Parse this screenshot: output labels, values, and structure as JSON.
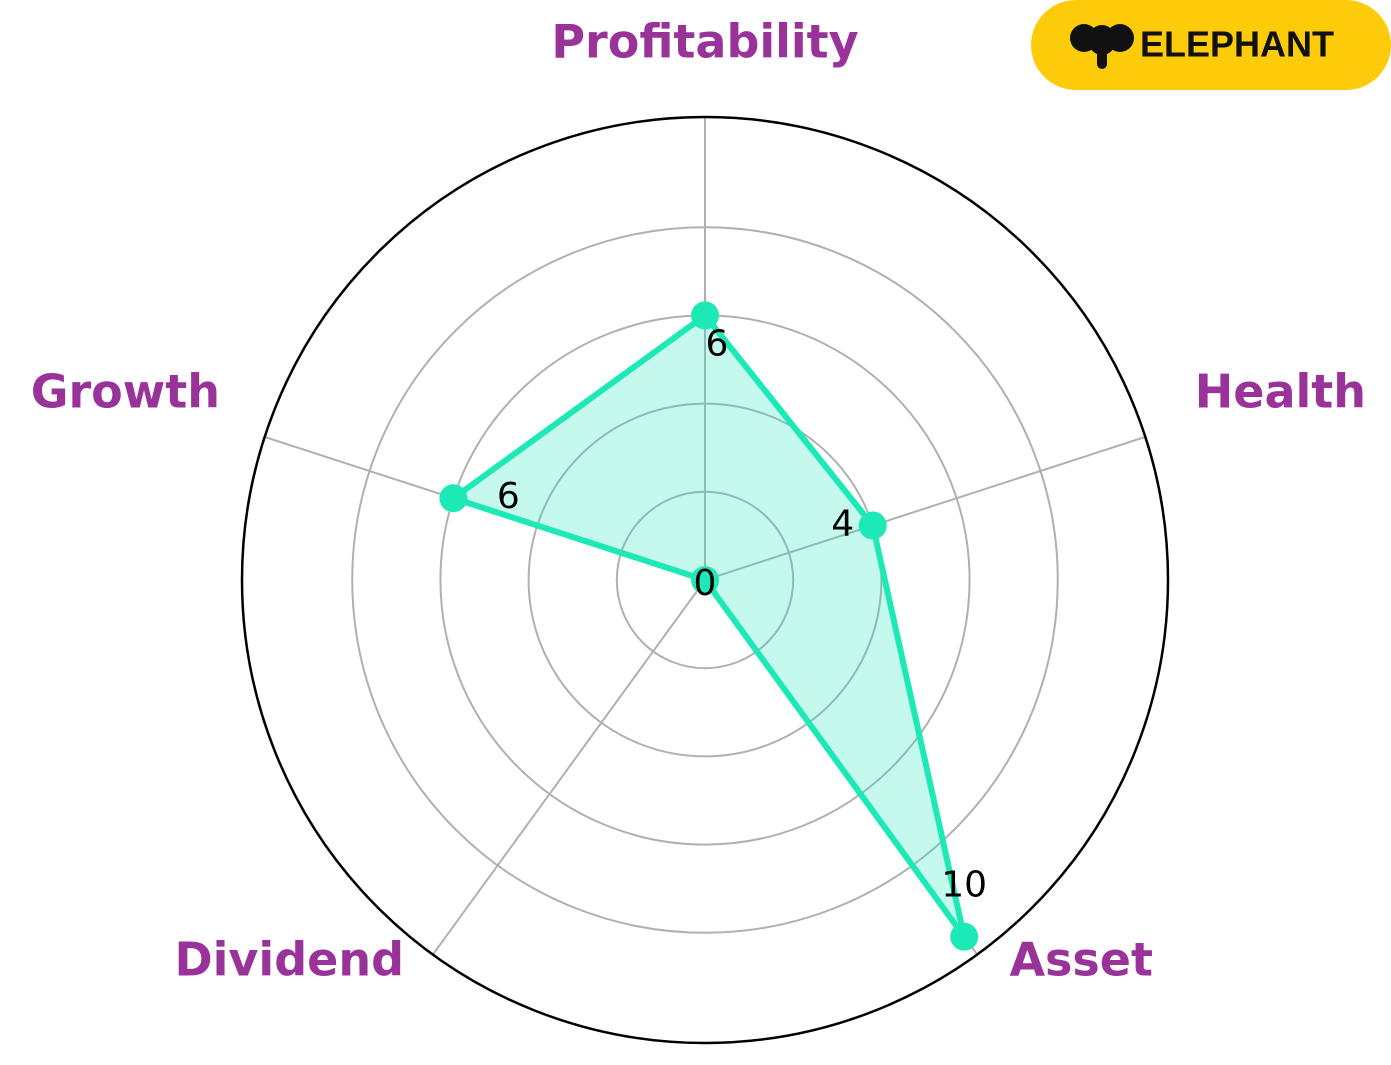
{
  "chart_data": {
    "type": "radar",
    "categories": [
      "Profitability",
      "Health",
      "Asset",
      "Dividend",
      "Growth"
    ],
    "values": [
      6,
      4,
      10,
      0,
      6
    ],
    "color": "#1de9b6",
    "label_color": "#993399",
    "ylim": [
      0,
      10.5
    ],
    "yticks": [
      2,
      4,
      6,
      8
    ],
    "grid": true
  },
  "logo": {
    "text": "ELEPHANT"
  }
}
